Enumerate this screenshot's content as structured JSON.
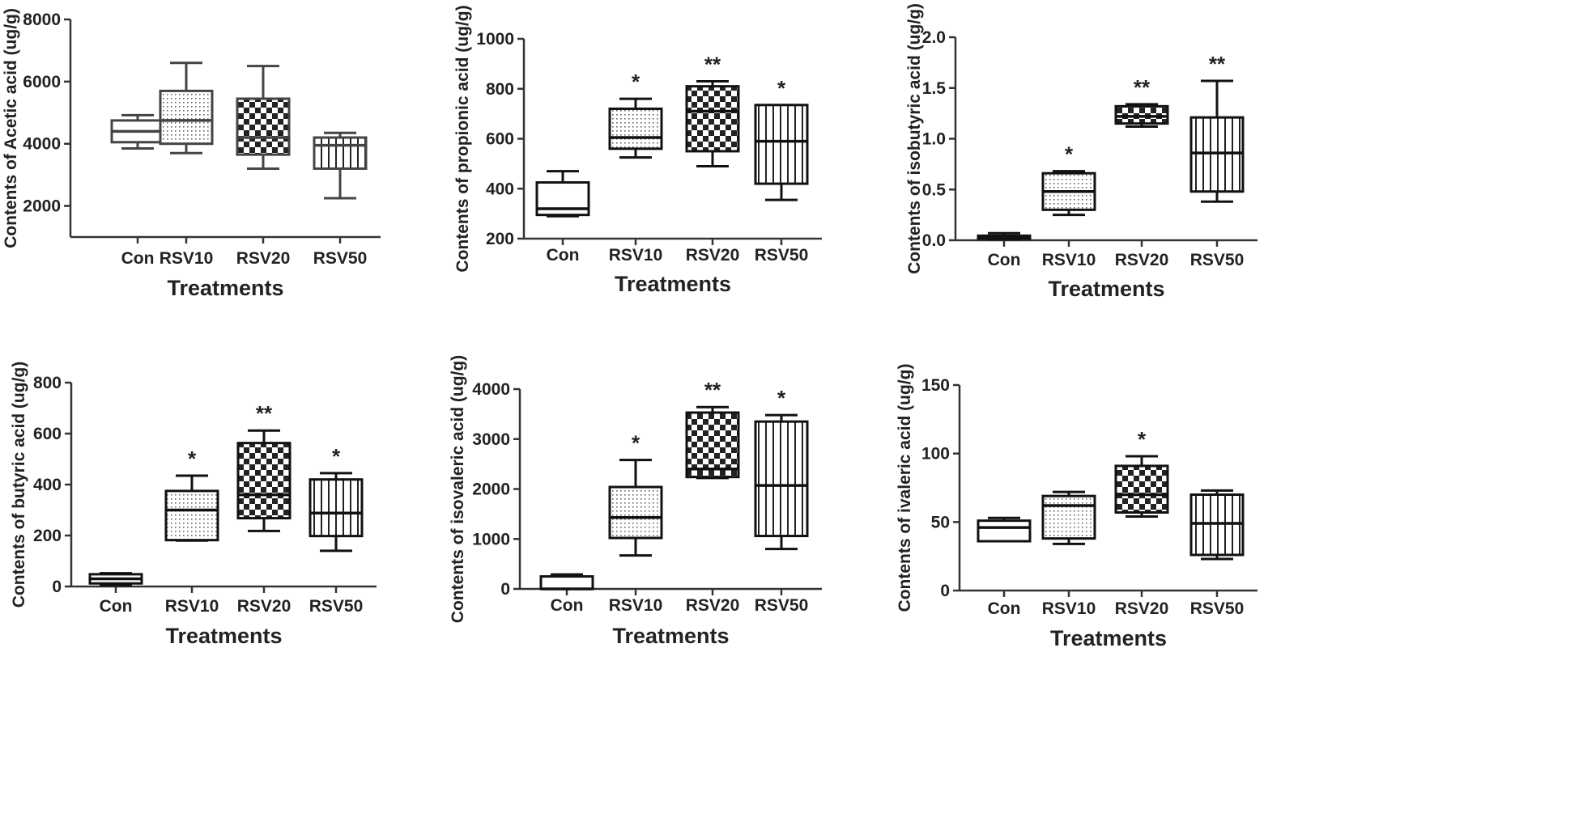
{
  "chart_data": [
    {
      "type": "boxplot",
      "ylabel": "Contents of Acetic acid (ug/g)",
      "xlabel": "Treatments",
      "categories": [
        "Con",
        "RSV10",
        "RSV20",
        "RSV50"
      ],
      "ylim": [
        1000,
        8000
      ],
      "yticks": [
        2000,
        4000,
        6000,
        8000
      ],
      "boxes": [
        {
          "min": 3850,
          "q1": 4050,
          "median": 4400,
          "q3": 4750,
          "max": 4920,
          "pattern": "none",
          "sig": ""
        },
        {
          "min": 3700,
          "q1": 4000,
          "median": 4750,
          "q3": 5700,
          "max": 6600,
          "pattern": "dots",
          "sig": ""
        },
        {
          "min": 3200,
          "q1": 3650,
          "median": 4200,
          "q3": 5450,
          "max": 6500,
          "pattern": "checker",
          "sig": ""
        },
        {
          "min": 2250,
          "q1": 3200,
          "median": 3950,
          "q3": 4200,
          "max": 4350,
          "pattern": "vlines",
          "sig": ""
        }
      ]
    },
    {
      "type": "boxplot",
      "ylabel": "Contents of propionic acid (ug/g)",
      "xlabel": "Treatments",
      "categories": [
        "Con",
        "RSV10",
        "RSV20",
        "RSV50"
      ],
      "ylim": [
        200,
        1000
      ],
      "yticks": [
        200,
        400,
        600,
        800,
        1000
      ],
      "boxes": [
        {
          "min": 290,
          "q1": 295,
          "median": 320,
          "q3": 425,
          "max": 470,
          "pattern": "none",
          "sig": ""
        },
        {
          "min": 525,
          "q1": 560,
          "median": 605,
          "q3": 720,
          "max": 760,
          "pattern": "dots",
          "sig": "*"
        },
        {
          "min": 490,
          "q1": 550,
          "median": 710,
          "q3": 810,
          "max": 830,
          "pattern": "checker",
          "sig": "**"
        },
        {
          "min": 355,
          "q1": 420,
          "median": 590,
          "q3": 735,
          "max": 735,
          "pattern": "vlines",
          "sig": "*"
        }
      ]
    },
    {
      "type": "boxplot",
      "ylabel": "Contents of isobutyric acid (ug/g)",
      "xlabel": "Treatments",
      "categories": [
        "Con",
        "RSV10",
        "RSV20",
        "RSV50"
      ],
      "ylim": [
        0.0,
        2.0
      ],
      "yticks": [
        0.0,
        0.5,
        1.0,
        1.5,
        2.0
      ],
      "tick_decimals": 1,
      "boxes": [
        {
          "min": 0.01,
          "q1": 0.015,
          "median": 0.03,
          "q3": 0.045,
          "max": 0.07,
          "pattern": "none",
          "sig": ""
        },
        {
          "min": 0.25,
          "q1": 0.3,
          "median": 0.48,
          "q3": 0.66,
          "max": 0.68,
          "pattern": "dots",
          "sig": "*"
        },
        {
          "min": 1.12,
          "q1": 1.15,
          "median": 1.22,
          "q3": 1.32,
          "max": 1.34,
          "pattern": "checker",
          "sig": "**"
        },
        {
          "min": 0.38,
          "q1": 0.48,
          "median": 0.86,
          "q3": 1.21,
          "max": 1.57,
          "pattern": "vlines",
          "sig": "**"
        }
      ]
    },
    {
      "type": "boxplot",
      "ylabel": "Contents of butyric acid (ug/g)",
      "xlabel": "Treatments",
      "categories": [
        "Con",
        "RSV10",
        "RSV20",
        "RSV50"
      ],
      "ylim": [
        0,
        800
      ],
      "yticks": [
        0,
        200,
        400,
        600,
        800
      ],
      "boxes": [
        {
          "min": 5,
          "q1": 12,
          "median": 30,
          "q3": 48,
          "max": 52,
          "pattern": "none",
          "sig": ""
        },
        {
          "min": 180,
          "q1": 182,
          "median": 300,
          "q3": 375,
          "max": 435,
          "pattern": "dots",
          "sig": "*"
        },
        {
          "min": 218,
          "q1": 268,
          "median": 360,
          "q3": 563,
          "max": 612,
          "pattern": "checker",
          "sig": "**"
        },
        {
          "min": 140,
          "q1": 198,
          "median": 288,
          "q3": 420,
          "max": 445,
          "pattern": "vlines",
          "sig": "*"
        }
      ]
    },
    {
      "type": "boxplot",
      "ylabel": "Contents of isovaleric acid (ug/g)",
      "xlabel": "Treatments",
      "categories": [
        "Con",
        "RSV10",
        "RSV20",
        "RSV50"
      ],
      "ylim": [
        0,
        4000
      ],
      "yticks": [
        0,
        1000,
        2000,
        3000,
        4000
      ],
      "boxes": [
        {
          "min": 0,
          "q1": 0,
          "median": 0,
          "q3": 250,
          "max": 290,
          "pattern": "none",
          "sig": ""
        },
        {
          "min": 670,
          "q1": 1020,
          "median": 1430,
          "q3": 2040,
          "max": 2580,
          "pattern": "dots",
          "sig": "*"
        },
        {
          "min": 2220,
          "q1": 2240,
          "median": 2400,
          "q3": 3530,
          "max": 3640,
          "pattern": "checker",
          "sig": "**"
        },
        {
          "min": 800,
          "q1": 1060,
          "median": 2070,
          "q3": 3350,
          "max": 3480,
          "pattern": "vlines",
          "sig": "*"
        }
      ]
    },
    {
      "type": "boxplot",
      "ylabel": "Contents of ivaleric acid (ug/g)",
      "xlabel": "Treatments",
      "categories": [
        "Con",
        "RSV10",
        "RSV20",
        "RSV50"
      ],
      "ylim": [
        0,
        150
      ],
      "yticks": [
        0,
        50,
        100,
        150
      ],
      "boxes": [
        {
          "min": 36,
          "q1": 36,
          "median": 46,
          "q3": 51,
          "max": 53,
          "pattern": "none",
          "sig": ""
        },
        {
          "min": 34,
          "q1": 38,
          "median": 62,
          "q3": 69,
          "max": 72,
          "pattern": "dots",
          "sig": ""
        },
        {
          "min": 54,
          "q1": 57,
          "median": 70,
          "q3": 91,
          "max": 98,
          "pattern": "checker",
          "sig": "*"
        },
        {
          "min": 23,
          "q1": 26,
          "median": 49,
          "q3": 70,
          "max": 73,
          "pattern": "vlines",
          "sig": ""
        }
      ]
    }
  ]
}
